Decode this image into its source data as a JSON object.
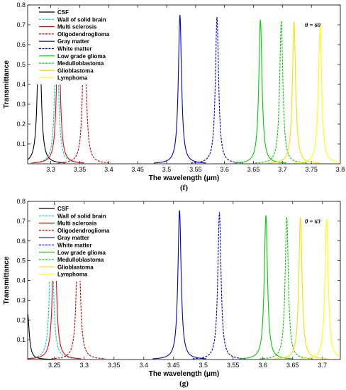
{
  "series_styles": [
    {
      "color": "#000000",
      "dash": ""
    },
    {
      "color": "#00cccc",
      "dash": "3,1.5"
    },
    {
      "color": "#ff0000",
      "dash": ""
    },
    {
      "color": "#cc0000",
      "dash": "3,1.5"
    },
    {
      "color": "#0000cc",
      "dash": ""
    },
    {
      "color": "#0000cc",
      "dash": "3,1.5"
    },
    {
      "color": "#00cc00",
      "dash": ""
    },
    {
      "color": "#00cc00",
      "dash": "3,1.5"
    },
    {
      "color": "#ffdd00",
      "dash": ""
    },
    {
      "color": "#ffff00",
      "dash": ""
    }
  ],
  "chart_data": [
    {
      "type": "line",
      "caption": "(f)",
      "annotation": "θ = 60",
      "xlabel": "The wavelength (μm)",
      "ylabel": "Transmittance",
      "xlim": [
        3.26,
        3.8
      ],
      "ylim": [
        0,
        0.8
      ],
      "xticks": [
        3.3,
        3.35,
        3.4,
        3.45,
        3.5,
        3.55,
        3.6,
        3.65,
        3.7,
        3.75
      ],
      "xtick_labels": [
        "3.3",
        "3.35",
        "3.4",
        "3.45",
        "3.5",
        "3.55",
        "3.6",
        "3.65",
        "3.7",
        "3.75"
      ],
      "edge_xtick_label": "3.8",
      "yticks": [
        0.1,
        0.2,
        0.3,
        0.4,
        0.5,
        0.6,
        0.7,
        0.8
      ],
      "ytick_labels": [
        "0.1",
        "0.2",
        "0.3",
        "0.4",
        "0.5",
        "0.6",
        "0.7",
        "0.8"
      ],
      "legend_position": "upper-left",
      "series": [
        {
          "name": "CSF",
          "peak_x": 3.28,
          "peak_y": 0.79
        },
        {
          "name": "Wall of solid brain",
          "peak_x": 3.31,
          "peak_y": 0.785
        },
        {
          "name": "Multi sclerosis",
          "peak_x": 3.313,
          "peak_y": 0.785
        },
        {
          "name": "Oligodendroglioma",
          "peak_x": 3.358,
          "peak_y": 0.78
        },
        {
          "name": "Gray matter",
          "peak_x": 3.523,
          "peak_y": 0.75
        },
        {
          "name": "White matter",
          "peak_x": 3.587,
          "peak_y": 0.74
        },
        {
          "name": "Low grade glioma",
          "peak_x": 3.662,
          "peak_y": 0.725
        },
        {
          "name": "Medulloblastoma",
          "peak_x": 3.698,
          "peak_y": 0.72
        },
        {
          "name": "Glioblastoma",
          "peak_x": 3.72,
          "peak_y": 0.715
        },
        {
          "name": "Lymphoma",
          "peak_x": 3.765,
          "peak_y": 0.705
        }
      ]
    },
    {
      "type": "line",
      "caption": "(g)",
      "annotation": "θ = 63",
      "xlabel": "The wavelength (μm)",
      "ylabel": "Transmittance",
      "xlim": [
        3.205,
        3.73
      ],
      "ylim": [
        0,
        0.8
      ],
      "xticks": [
        3.25,
        3.3,
        3.35,
        3.4,
        3.45,
        3.5,
        3.55,
        3.6,
        3.65,
        3.7
      ],
      "xtick_labels": [
        "3.25",
        "3.3",
        "3.35",
        "3.4",
        "3.45",
        "3.5",
        "3.55",
        "3.6",
        "3.65",
        "3.7"
      ],
      "yticks": [
        0.1,
        0.2,
        0.3,
        0.4,
        0.5,
        0.6,
        0.7,
        0.8
      ],
      "ytick_labels": [
        "0.1",
        "0.2",
        "0.3",
        "0.4",
        "0.5",
        "0.6",
        "0.7",
        "0.8"
      ],
      "legend_position": "upper-left",
      "series": [
        {
          "name": "CSF",
          "peak_x": 3.205,
          "peak_y": 0.23
        },
        {
          "name": "Wall of solid brain",
          "peak_x": 3.245,
          "peak_y": 0.785
        },
        {
          "name": "Multi sclerosis",
          "peak_x": 3.25,
          "peak_y": 0.79
        },
        {
          "name": "Oligodendroglioma",
          "peak_x": 3.29,
          "peak_y": 0.78
        },
        {
          "name": "Gray matter",
          "peak_x": 3.46,
          "peak_y": 0.755
        },
        {
          "name": "White matter",
          "peak_x": 3.527,
          "peak_y": 0.745
        },
        {
          "name": "Low grade glioma",
          "peak_x": 3.605,
          "peak_y": 0.73
        },
        {
          "name": "Medulloblastoma",
          "peak_x": 3.64,
          "peak_y": 0.72
        },
        {
          "name": "Glioblastoma",
          "peak_x": 3.663,
          "peak_y": 0.72
        },
        {
          "name": "Lymphoma",
          "peak_x": 3.707,
          "peak_y": 0.71
        }
      ]
    }
  ]
}
